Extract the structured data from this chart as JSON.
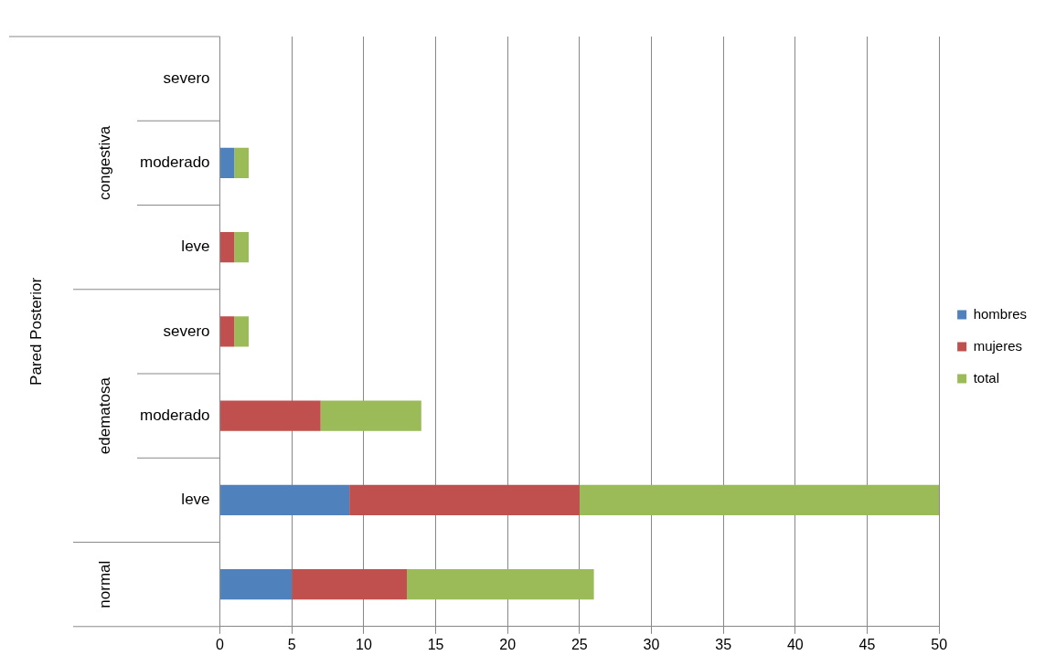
{
  "chart_data": {
    "type": "bar",
    "orientation": "horizontal",
    "stacked": true,
    "categories": [
      "severo",
      "moderado",
      "leve",
      "severo",
      "moderado",
      "leve",
      null
    ],
    "annotations": [
      "congestiva",
      "edematosa",
      "normal",
      "Pared Posterior"
    ],
    "series": [
      {
        "name": "hombres",
        "color": "#4f81bd",
        "values": [
          0,
          1,
          0,
          0,
          0,
          9,
          5
        ]
      },
      {
        "name": "mujeres",
        "color": "#c0504d",
        "values": [
          0,
          0,
          1,
          1,
          7,
          16,
          8
        ]
      },
      {
        "name": "total",
        "color": "#9bbb59",
        "values": [
          0,
          1,
          1,
          1,
          7,
          25,
          13
        ]
      }
    ],
    "xlim": [
      0,
      50
    ],
    "xticks": [
      0,
      5,
      10,
      15,
      20,
      25,
      30,
      35,
      40,
      45,
      50
    ],
    "grid": "x",
    "legend": "right"
  }
}
